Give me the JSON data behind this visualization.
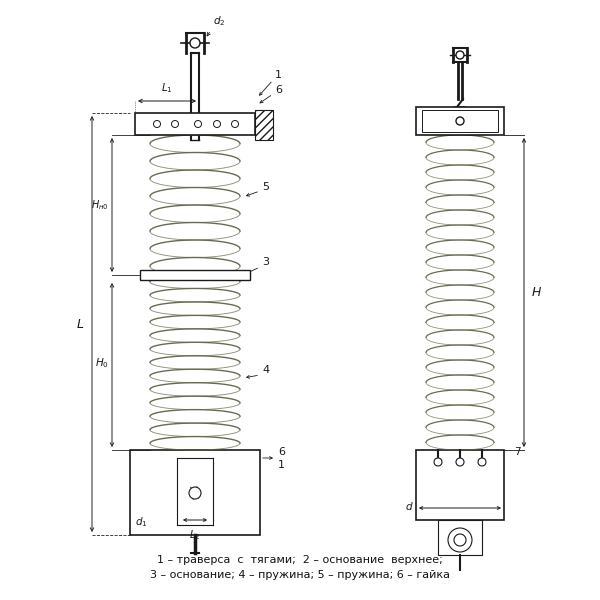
{
  "background_color": "#ffffff",
  "line_color": "#1a1a1a",
  "spring_color": "#6a6a50",
  "caption_line1": "1 – траверса  с  тягами;  2 – основание  верхнее;",
  "caption_line2": "3 – основание; 4 – пружина; 5 – пружина; 6 – гайка"
}
